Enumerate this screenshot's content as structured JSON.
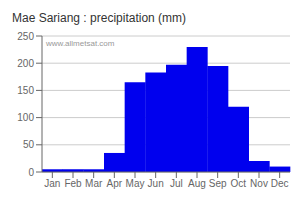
{
  "chart_data": {
    "type": "bar",
    "title": "Mae Sariang : precipitation (mm)",
    "categories": [
      "Jan",
      "Feb",
      "Mar",
      "Apr",
      "May",
      "Jun",
      "Jul",
      "Aug",
      "Sep",
      "Oct",
      "Nov",
      "Dec"
    ],
    "values": [
      5,
      5,
      5,
      35,
      165,
      183,
      197,
      230,
      195,
      120,
      20,
      10
    ],
    "color": "#0000EE",
    "ylim": [
      0,
      250
    ],
    "yticks": [
      0,
      50,
      100,
      150,
      200,
      250
    ],
    "grid": true,
    "annotation": "www.allmetsat.com"
  }
}
